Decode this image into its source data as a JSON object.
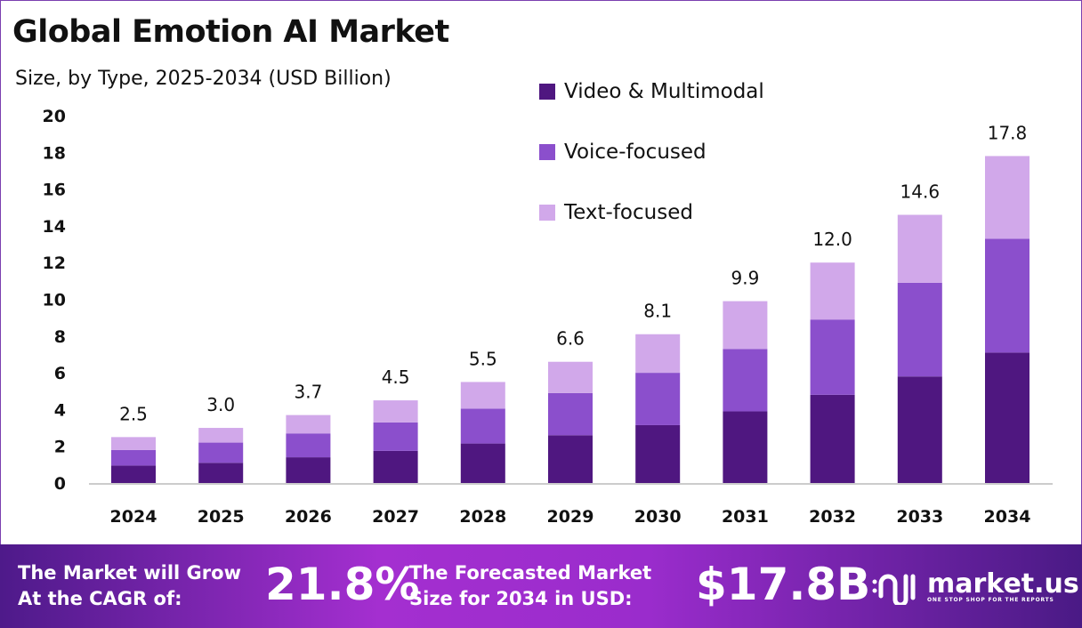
{
  "chart_data": {
    "type": "bar",
    "stacked": true,
    "title": "Global Emotion AI Market",
    "subtitle": "Size, by Type, 2025-2034 (USD Billion)",
    "categories": [
      "2024",
      "2025",
      "2026",
      "2027",
      "2028",
      "2029",
      "2030",
      "2031",
      "2032",
      "2033",
      "2034"
    ],
    "series": [
      {
        "name": "Video & Multimodal",
        "color": "#4f1780",
        "values": [
          0.95,
          1.1,
          1.4,
          1.75,
          2.15,
          2.6,
          3.15,
          3.9,
          4.8,
          5.8,
          7.1
        ]
      },
      {
        "name": "Voice-focused",
        "color": "#8b4fcc",
        "values": [
          0.85,
          1.1,
          1.3,
          1.55,
          1.9,
          2.3,
          2.85,
          3.4,
          4.1,
          5.1,
          6.2
        ]
      },
      {
        "name": "Text-focused",
        "color": "#d1a8ea",
        "values": [
          0.7,
          0.8,
          1.0,
          1.2,
          1.45,
          1.7,
          2.1,
          2.6,
          3.1,
          3.7,
          4.5
        ]
      }
    ],
    "totals": [
      "2.5",
      "3.0",
      "3.7",
      "4.5",
      "5.5",
      "6.6",
      "8.1",
      "9.9",
      "12.0",
      "14.6",
      "17.8"
    ],
    "ylim": [
      0,
      20
    ],
    "yticks": [
      "0",
      "2",
      "4",
      "6",
      "8",
      "10",
      "12",
      "14",
      "16",
      "18",
      "20"
    ],
    "grid": false,
    "legend_position": "top-center"
  },
  "banner": {
    "cagr_label_1": "The Market will Grow",
    "cagr_label_2": "At the CAGR of:",
    "cagr_value": "21.8%",
    "size_label_1": "The Forecasted Market",
    "size_label_2": "Size for 2034 in USD:",
    "size_value": "$17.8B",
    "logo_name": "market.us",
    "logo_tagline": "ONE STOP SHOP FOR THE REPORTS"
  }
}
